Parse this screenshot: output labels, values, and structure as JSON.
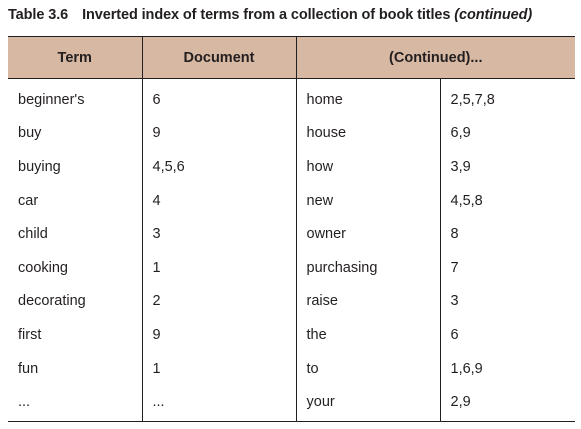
{
  "caption": {
    "number": "Table 3.6",
    "text": "Inverted index of terms from a collection of book titles",
    "suffix": "(continued)"
  },
  "table": {
    "headers": [
      "Term",
      "Document",
      "(Continued)..."
    ],
    "rows": [
      [
        "beginner's",
        "6",
        "home",
        "2,5,7,8"
      ],
      [
        "buy",
        "9",
        "house",
        "6,9"
      ],
      [
        "buying",
        "4,5,6",
        "how",
        "3,9"
      ],
      [
        "car",
        "4",
        "new",
        "4,5,8"
      ],
      [
        "child",
        "3",
        "owner",
        "8"
      ],
      [
        "cooking",
        "1",
        "purchasing",
        "7"
      ],
      [
        "decorating",
        "2",
        "raise",
        "3"
      ],
      [
        "first",
        "9",
        "the",
        "6"
      ],
      [
        "fun",
        "1",
        "to",
        "1,6,9"
      ],
      [
        "...",
        "...",
        "your",
        "2,9"
      ]
    ]
  }
}
